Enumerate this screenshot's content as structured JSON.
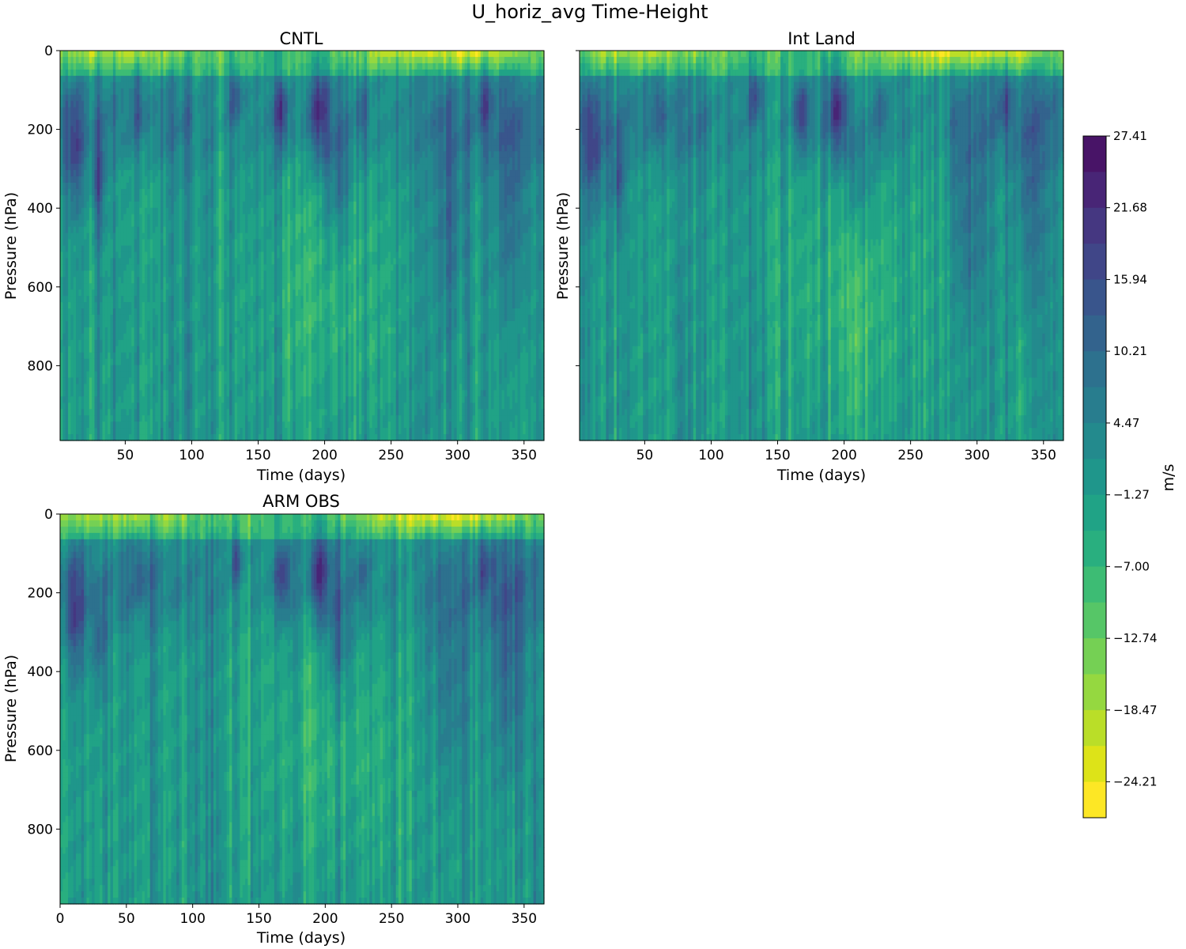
{
  "chart_data": {
    "type": "heatmap",
    "title": "U_horiz_avg Time-Height",
    "colorbar": {
      "label": "m/s",
      "vmin": -27.08,
      "vmax": 27.41,
      "levels": 19,
      "tick_values": [
        27.41,
        21.68,
        15.94,
        10.21,
        4.47,
        -1.27,
        -7.0,
        -12.74,
        -18.47,
        -24.21
      ],
      "tick_labels": [
        "27.41",
        "21.68",
        "15.94",
        "10.21",
        "4.47",
        "−1.27",
        "−7.00",
        "−12.74",
        "−18.47",
        "−24.21"
      ],
      "colormap": "viridis_r",
      "colors": [
        "#fde725",
        "#dde318",
        "#bade28",
        "#95d840",
        "#75d054",
        "#56c667",
        "#3dbc74",
        "#29af7f",
        "#20a386",
        "#1f968b",
        "#238a8d",
        "#287d8e",
        "#2d718e",
        "#33638d",
        "#39558c",
        "#404688",
        "#453781",
        "#482576",
        "#481467"
      ]
    },
    "panels": [
      {
        "name": "cntl",
        "title": "CNTL",
        "xlabel": "Time (days)",
        "ylabel": "Pressure (hPa)",
        "xlim": [
          1,
          365
        ],
        "ylim": [
          990,
          0
        ],
        "xticks": [
          50,
          100,
          150,
          200,
          250,
          300,
          350
        ],
        "xtick_labels": [
          "50",
          "100",
          "150",
          "200",
          "250",
          "300",
          "350"
        ],
        "yticks": [
          0,
          200,
          400,
          600,
          800
        ],
        "ytick_labels": [
          "0",
          "200",
          "400",
          "600",
          "800"
        ],
        "seed": 11
      },
      {
        "name": "int-land",
        "title": "Int Land",
        "xlabel": "Time (days)",
        "ylabel": "Pressure (hPa)",
        "xlim": [
          1,
          365
        ],
        "ylim": [
          990,
          0
        ],
        "xticks": [
          50,
          100,
          150,
          200,
          250,
          300,
          350
        ],
        "xtick_labels": [
          "50",
          "100",
          "150",
          "200",
          "250",
          "300",
          "350"
        ],
        "yticks": [
          0,
          200,
          400,
          600,
          800
        ],
        "ytick_labels": [],
        "seed": 23
      },
      {
        "name": "arm-obs",
        "title": "ARM OBS",
        "xlabel": "Time (days)",
        "ylabel": "Pressure (hPa)",
        "xlim": [
          0,
          365
        ],
        "ylim": [
          990,
          0
        ],
        "xticks": [
          0,
          50,
          100,
          150,
          200,
          250,
          300,
          350
        ],
        "xtick_labels": [
          "0",
          "50",
          "100",
          "150",
          "200",
          "250",
          "300",
          "350"
        ],
        "yticks": [
          0,
          200,
          400,
          600,
          800
        ],
        "ytick_labels": [
          "0",
          "200",
          "400",
          "600",
          "800"
        ],
        "seed": 37
      }
    ]
  }
}
